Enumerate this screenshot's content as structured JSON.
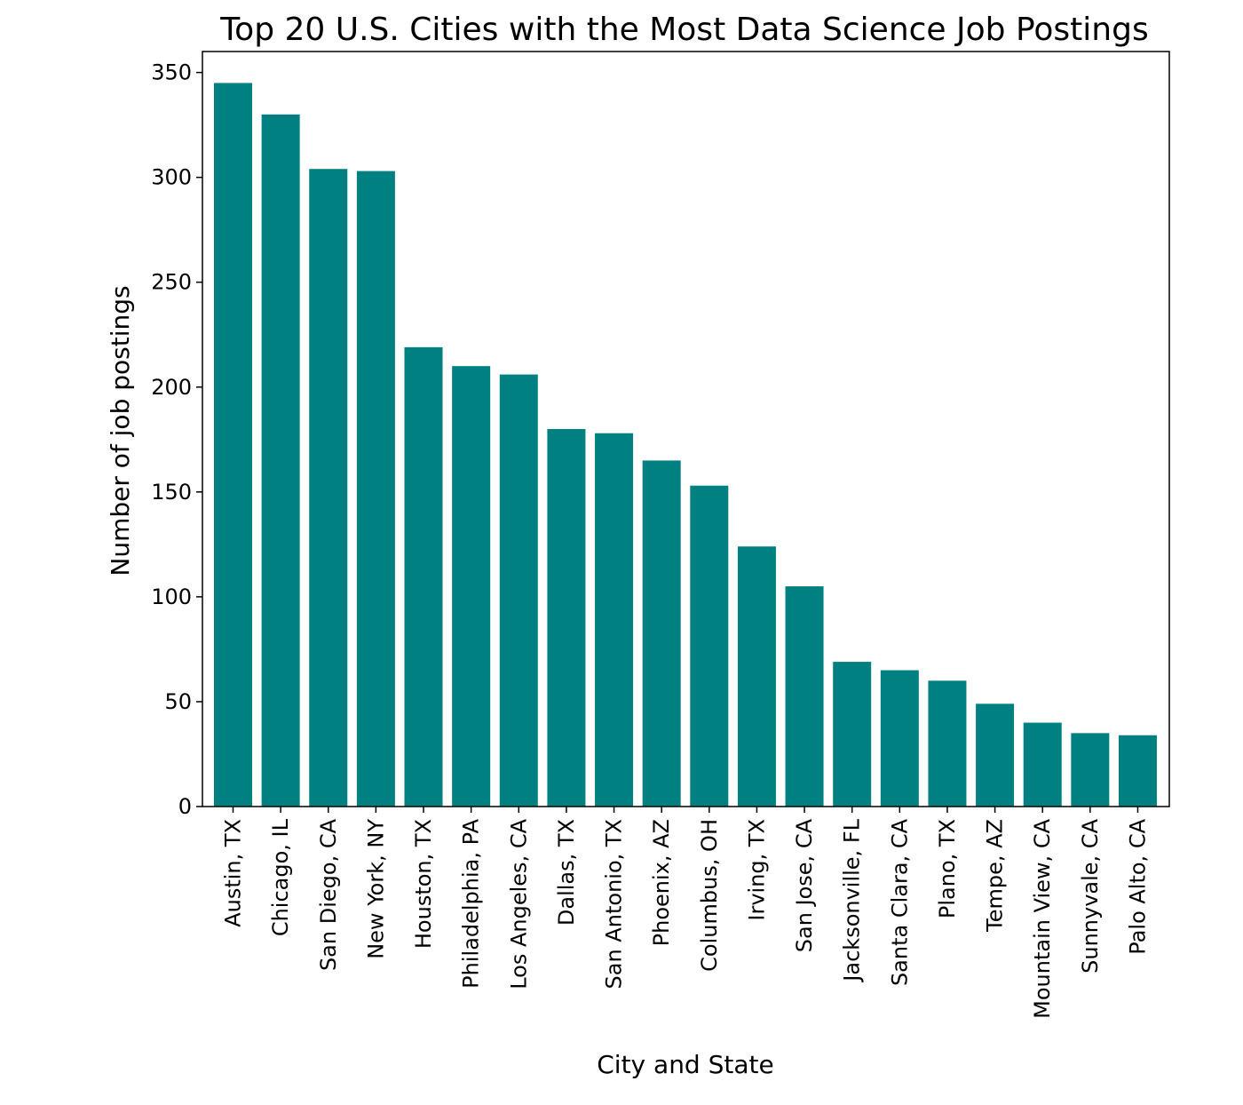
{
  "chart_data": {
    "type": "bar",
    "title": "Top 20 U.S. Cities with the Most Data Science Job Postings",
    "xlabel": "City and State",
    "ylabel": "Number of job postings",
    "categories": [
      "Austin, TX",
      "Chicago, IL",
      "San Diego, CA",
      "New York, NY",
      "Houston, TX",
      "Philadelphia, PA",
      "Los Angeles, CA",
      "Dallas, TX",
      "San Antonio, TX",
      "Phoenix, AZ",
      "Columbus, OH",
      "Irving, TX",
      "San Jose, CA",
      "Jacksonville, FL",
      "Santa Clara, CA",
      "Plano, TX",
      "Tempe, AZ",
      "Mountain View, CA",
      "Sunnyvale, CA",
      "Palo Alto, CA"
    ],
    "values": [
      345,
      330,
      304,
      303,
      219,
      210,
      206,
      180,
      178,
      165,
      153,
      124,
      105,
      69,
      65,
      60,
      49,
      40,
      35,
      34
    ],
    "ylim": [
      0,
      360
    ],
    "yticks": [
      "0",
      "50",
      "100",
      "150",
      "200",
      "250",
      "300",
      "350"
    ],
    "bar_color": "#008080",
    "grid": false,
    "legend": false
  }
}
